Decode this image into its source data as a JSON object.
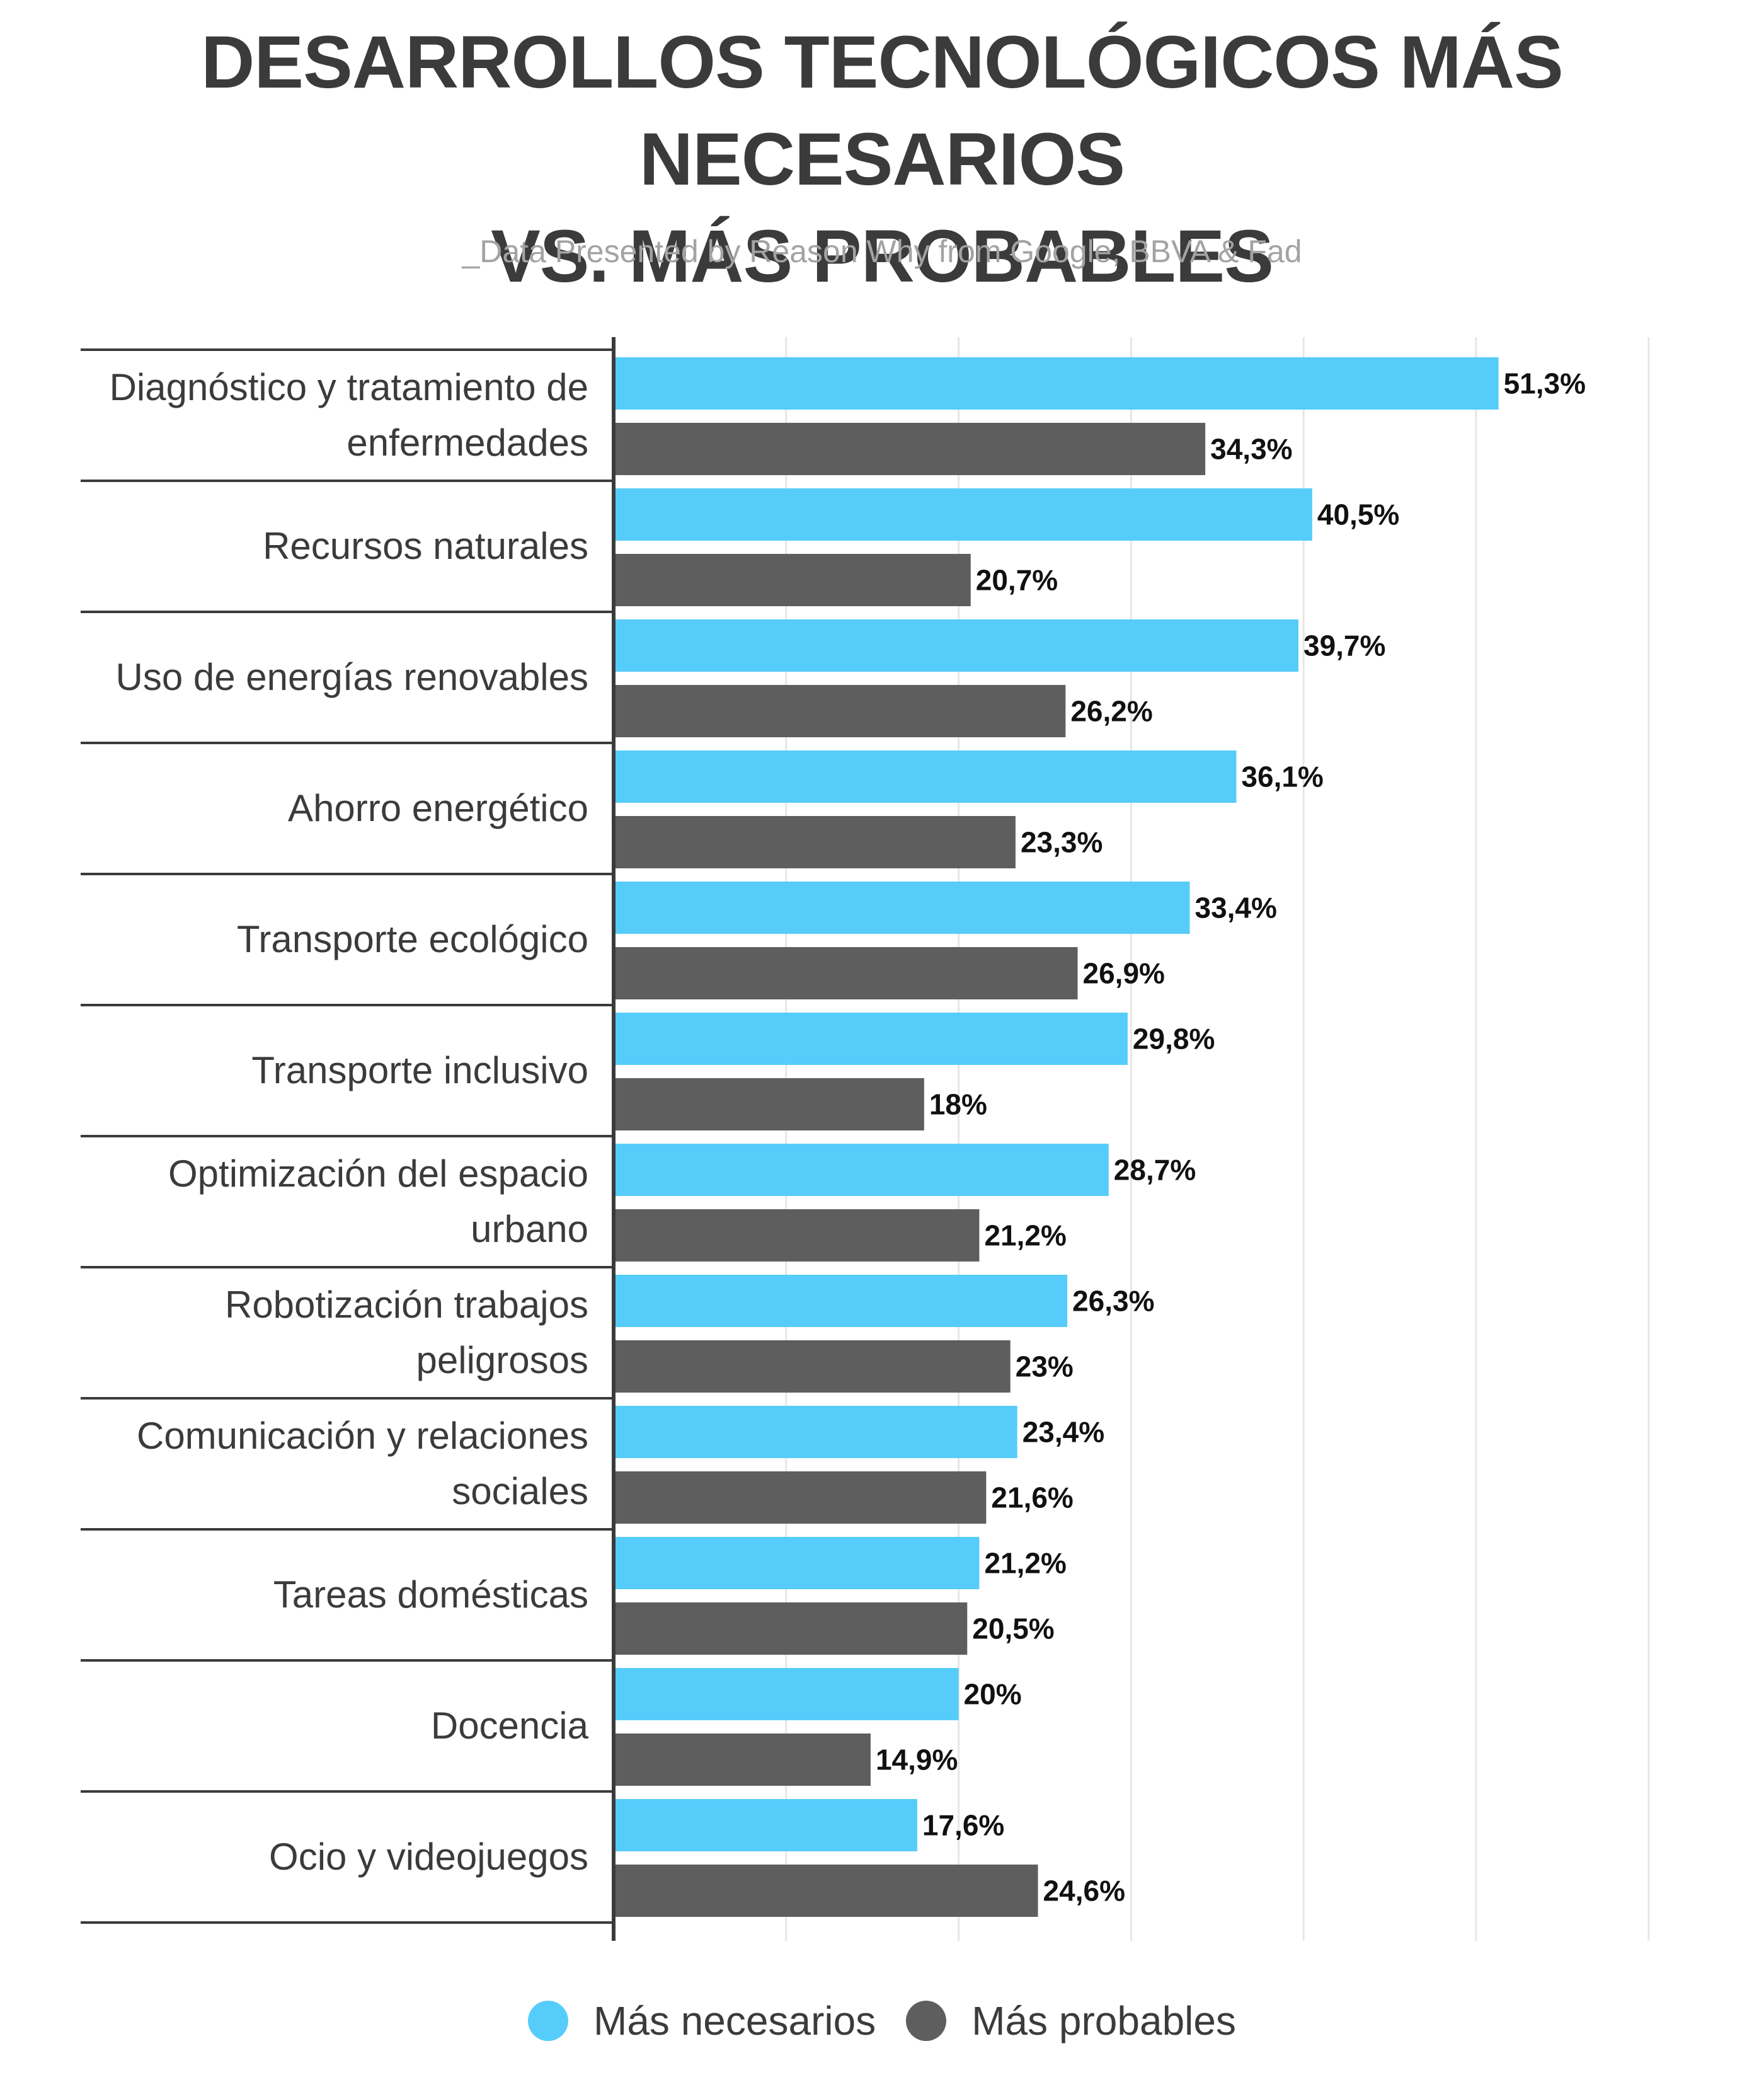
{
  "chart_data": {
    "type": "bar",
    "orientation": "horizontal",
    "title_lines": [
      "DESARROLLOS TECNOLÓGICOS MÁS NECESARIOS",
      "VS. MÁS PROBABLES"
    ],
    "subtitle": "_Data Presented by Reason Why from Google, BBVA & Fad",
    "categories": [
      [
        "Diagnóstico y tratamiento de",
        "enfermedades"
      ],
      [
        "Recursos naturales"
      ],
      [
        "Uso de energías renovables"
      ],
      [
        "Ahorro energético"
      ],
      [
        "Transporte ecológico"
      ],
      [
        "Transporte inclusivo"
      ],
      [
        "Optimización del espacio",
        "urbano"
      ],
      [
        "Robotización trabajos",
        "peligrosos"
      ],
      [
        "Comunicación y relaciones",
        "sociales"
      ],
      [
        "Tareas domésticas"
      ],
      [
        "Docencia"
      ],
      [
        "Ocio y videojuegos"
      ]
    ],
    "series": [
      {
        "name": "Más necesarios",
        "color": "#56ccfa",
        "values": [
          51.3,
          40.5,
          39.7,
          36.1,
          33.4,
          29.8,
          28.7,
          26.3,
          23.4,
          21.2,
          20,
          17.6
        ],
        "labels": [
          "51,3%",
          "40,5%",
          "39,7%",
          "36,1%",
          "33,4%",
          "29,8%",
          "28,7%",
          "26,3%",
          "23,4%",
          "21,2%",
          "20%",
          "17,6%"
        ]
      },
      {
        "name": "Más probables",
        "color": "#5e5e5e",
        "values": [
          34.3,
          20.7,
          26.2,
          23.3,
          26.9,
          18,
          21.2,
          23,
          21.6,
          20.5,
          14.9,
          24.6
        ],
        "labels": [
          "34,3%",
          "20,7%",
          "26,2%",
          "23,3%",
          "26,9%",
          "18%",
          "21,2%",
          "23%",
          "21,6%",
          "20,5%",
          "14,9%",
          "24,6%"
        ]
      }
    ],
    "xlim": [
      0,
      60
    ],
    "grid": true,
    "legend_position": "bottom-center"
  }
}
